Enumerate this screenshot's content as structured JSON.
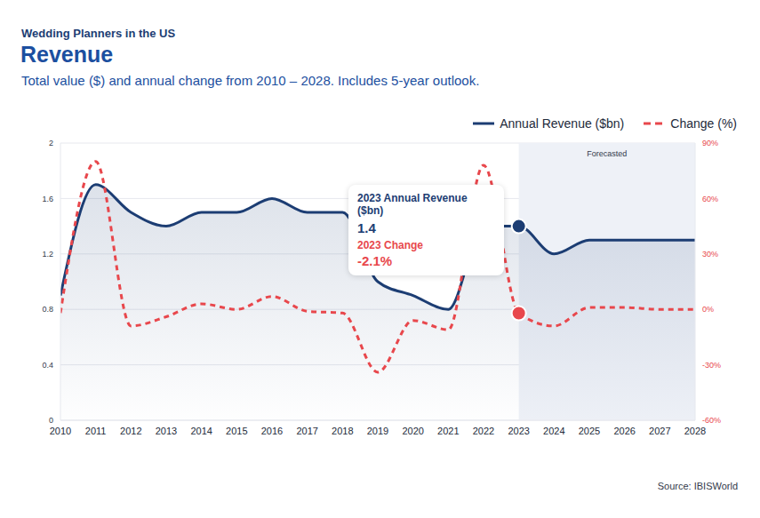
{
  "chart_data": {
    "type": "line",
    "supertitle": "Wedding Planners in the US",
    "title": "Revenue",
    "subtitle": "Total value ($) and annual change from 2010 – 2028. Includes 5-year outlook.",
    "source": "Source: IBISWorld",
    "x": [
      2010,
      2011,
      2012,
      2013,
      2014,
      2015,
      2016,
      2017,
      2018,
      2019,
      2020,
      2021,
      2022,
      2023,
      2024,
      2025,
      2026,
      2027,
      2028
    ],
    "xlim": [
      2010,
      2028
    ],
    "xticks": [
      2010,
      2011,
      2012,
      2013,
      2014,
      2015,
      2016,
      2017,
      2018,
      2019,
      2020,
      2021,
      2022,
      2023,
      2024,
      2025,
      2026,
      2027,
      2028
    ],
    "ylim": [
      0,
      2
    ],
    "yticks": [
      0,
      0.4,
      0.8,
      1.2,
      1.6,
      2
    ],
    "y2lim": [
      -60,
      90
    ],
    "y2ticks": [
      {
        "value": -60,
        "label": "-60%"
      },
      {
        "value": -30,
        "label": "-30%"
      },
      {
        "value": 0,
        "label": "0%"
      },
      {
        "value": 30,
        "label": "30%"
      },
      {
        "value": 60,
        "label": "60%"
      },
      {
        "value": 90,
        "label": "90%"
      }
    ],
    "grid": true,
    "legend": "top right",
    "series": [
      {
        "name": "Annual Revenue ($bn)",
        "type": "area",
        "color": "#1c3d73",
        "line_style": "solid",
        "values": [
          0.9,
          1.7,
          1.5,
          1.4,
          1.5,
          1.5,
          1.6,
          1.5,
          1.5,
          1.0,
          0.9,
          0.8,
          1.4,
          1.4,
          1.2,
          1.3,
          1.3,
          1.3,
          1.3
        ]
      },
      {
        "name": "Change (%)",
        "type": "line",
        "color": "#e8474c",
        "line_style": "dashed",
        "axis": "y2",
        "values": [
          -2,
          80,
          -9,
          -4,
          3,
          0,
          7,
          -1,
          -2,
          -34,
          -6,
          -11,
          78,
          -2.1,
          -9,
          1,
          1,
          0,
          0
        ]
      }
    ],
    "forecast": {
      "from": 2023,
      "to": 2028,
      "label": "Forecasted"
    },
    "annotation": {
      "x": 2023,
      "revenue_title": "2023 Annual Revenue ($bn)",
      "revenue_value": 1.4,
      "change_title": "2023 Change",
      "change_value": {
        "value": -2.1,
        "label": "-2.1%"
      }
    }
  }
}
